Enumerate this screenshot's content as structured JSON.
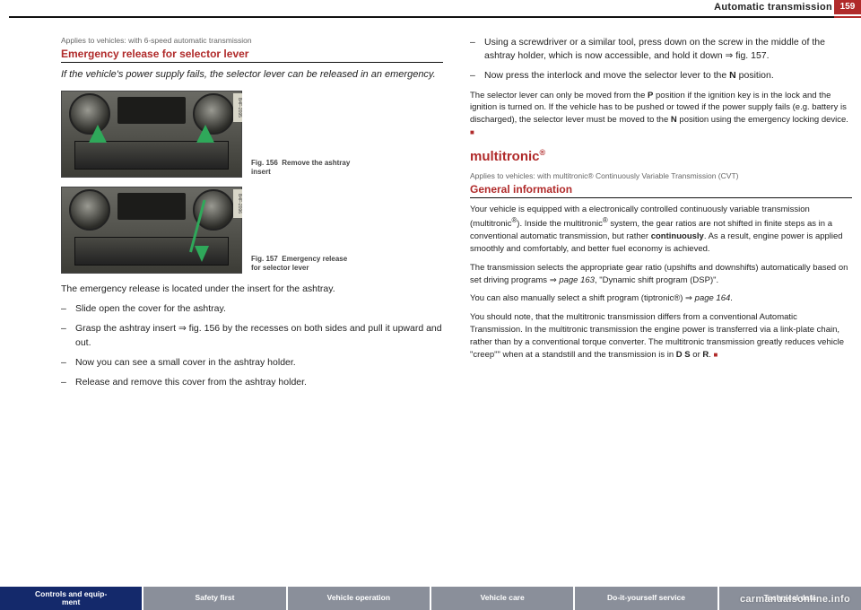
{
  "header": {
    "chapter": "Automatic transmission",
    "page_number": "159"
  },
  "left": {
    "applies": "Applies to vehicles: with 6-speed automatic transmission",
    "title": "Emergency release for selector lever",
    "subtitle": "If the vehicle's power supply fails, the selector lever can be released in an emergency.",
    "fig156_id": "B4F-2095",
    "fig156_caption_label": "Fig. 156",
    "fig156_caption_text": "Remove the ashtray insert",
    "fig157_id": "B4F-2096",
    "fig157_caption_label": "Fig. 157",
    "fig157_caption_text": "Emergency release for selector lever",
    "intro": "The emergency release is located under the insert for the ashtray.",
    "steps": [
      "Slide open the cover for the ashtray.",
      "Grasp the ashtray insert ⇒ fig. 156 by the recesses on both sides and pull it upward and out.",
      "Now you can see a small cover in the ashtray holder.",
      "Release and remove this cover from the ashtray holder."
    ]
  },
  "right": {
    "steps": [
      "Using a screwdriver or a similar tool, press down on the screw in the middle of the ashtray holder, which is now accessible, and hold it down ⇒ fig. 157.",
      "Now press the interlock and move the selector lever to the N position."
    ],
    "para1": "The selector lever can only be moved from the P position if the ignition key is in the lock and the ignition is turned on. If the vehicle has to be pushed or towed if the power supply fails (e.g. battery is discharged), the selector lever must be moved to the N position using the emergency locking device.",
    "brand": "multitronic",
    "applies2": "Applies to vehicles: with multitronic® Continuously Variable Transmission (CVT)",
    "title2": "General information",
    "para2": "Your vehicle is equipped with a electronically controlled continuously variable transmission (multitronic®). Inside the multitronic® system, the gear ratios are not shifted in finite steps as in a conventional automatic transmission, but rather continuously. As a result, engine power is applied smoothly and comfortably, and better fuel economy is achieved.",
    "para3": "The transmission selects the appropriate gear ratio (upshifts and downshifts) automatically based on set driving programs ⇒ page 163, \"Dynamic shift program (DSP)\".",
    "para4": "You can also manually select a shift program (tiptronic®) ⇒ page 164.",
    "para5": "You should note, that the multitronic transmission differs from a conventional Automatic Transmission. In the multitronic transmission the engine power is transferred via a link-plate chain, rather than by a conventional torque converter. The multitronic transmission greatly reduces vehicle \"creep\"\" when at a standstill and the transmission is in D S or R."
  },
  "footer": {
    "tabs": [
      {
        "label": "Controls and equipment",
        "active": true
      },
      {
        "label": "Safety first",
        "active": false
      },
      {
        "label": "Vehicle operation",
        "active": false
      },
      {
        "label": "Vehicle care",
        "active": false
      },
      {
        "label": "Do-it-yourself service",
        "active": false
      },
      {
        "label": "Technical data",
        "active": false
      }
    ]
  },
  "watermark": "carmanualsonline.info"
}
